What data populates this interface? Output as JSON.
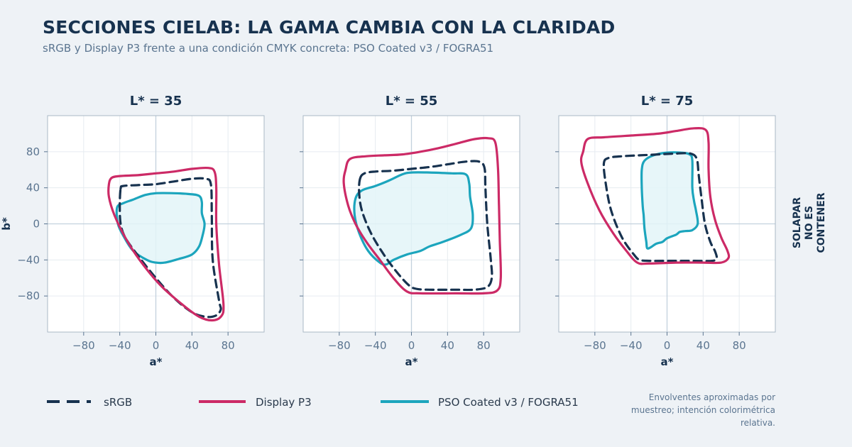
{
  "header": {
    "title": "SECCIONES CIELAB: LA GAMA CAMBIA CON LA CLARIDAD",
    "subtitle": "sRGB y Display P3 frente a una condición CMYK concreta: PSO Coated v3 / FOGRA51"
  },
  "side_label": [
    "SOLAPAR",
    "NO ES",
    "CONTENER"
  ],
  "note": "Envolventes aproximadas por muestreo; intención colorimétrica relativa.",
  "colors": {
    "srgb": "#17324f",
    "p3": "#cc2a66",
    "fogra": "#1ca5bd",
    "fogra_fill": "#e3f5f8",
    "title": "#17324f",
    "muted": "#5b7590"
  },
  "chart_data": [
    {
      "type": "line",
      "title": "L* = 35",
      "xlabel": "a*",
      "ylabel": "b*",
      "xlim": [
        -120,
        120
      ],
      "ylim": [
        -120,
        120
      ],
      "xticks": [
        -80,
        -40,
        0,
        40,
        80
      ],
      "yticks": [
        -80,
        -40,
        0,
        40,
        80
      ],
      "grid": true,
      "series": [
        {
          "name": "sRGB",
          "style": "dashed",
          "points": [
            [
              -39,
              39
            ],
            [
              -36,
              42
            ],
            [
              -20,
              43
            ],
            [
              0,
              44
            ],
            [
              20,
              47
            ],
            [
              40,
              50
            ],
            [
              55,
              50
            ],
            [
              61,
              44
            ],
            [
              62,
              10
            ],
            [
              63,
              -40
            ],
            [
              70,
              -85
            ],
            [
              72,
              -95
            ],
            [
              66,
              -102
            ],
            [
              55,
              -103
            ],
            [
              40,
              -98
            ],
            [
              20,
              -82
            ],
            [
              0,
              -60
            ],
            [
              -20,
              -35
            ],
            [
              -34,
              -15
            ],
            [
              -39,
              0
            ],
            [
              -40,
              20
            ],
            [
              -39,
              39
            ]
          ]
        },
        {
          "name": "Display P3",
          "style": "solid",
          "points": [
            [
              -52,
              44
            ],
            [
              -49,
              51
            ],
            [
              -40,
              53
            ],
            [
              -20,
              54
            ],
            [
              0,
              56
            ],
            [
              20,
              58
            ],
            [
              40,
              61
            ],
            [
              58,
              62
            ],
            [
              65,
              58
            ],
            [
              67,
              40
            ],
            [
              67,
              0
            ],
            [
              70,
              -45
            ],
            [
              75,
              -90
            ],
            [
              72,
              -103
            ],
            [
              62,
              -107
            ],
            [
              48,
              -103
            ],
            [
              30,
              -90
            ],
            [
              5,
              -68
            ],
            [
              -18,
              -40
            ],
            [
              -34,
              -15
            ],
            [
              -46,
              10
            ],
            [
              -52,
              30
            ],
            [
              -52,
              44
            ]
          ]
        },
        {
          "name": "PSO Coated v3 / FOGRA51",
          "style": "solid-filled",
          "points": [
            [
              -43,
              18
            ],
            [
              -36,
              23
            ],
            [
              -25,
              27
            ],
            [
              -12,
              32
            ],
            [
              0,
              34
            ],
            [
              20,
              34
            ],
            [
              38,
              33
            ],
            [
              48,
              31
            ],
            [
              51,
              24
            ],
            [
              51,
              12
            ],
            [
              54,
              0
            ],
            [
              52,
              -12
            ],
            [
              48,
              -25
            ],
            [
              40,
              -34
            ],
            [
              25,
              -39
            ],
            [
              10,
              -43
            ],
            [
              0,
              -43
            ],
            [
              -10,
              -40
            ],
            [
              -25,
              -30
            ],
            [
              -35,
              -15
            ],
            [
              -42,
              0
            ],
            [
              -43,
              18
            ]
          ]
        }
      ]
    },
    {
      "type": "line",
      "title": "L* = 55",
      "xlabel": "a*",
      "ylabel": "",
      "xlim": [
        -120,
        120
      ],
      "ylim": [
        -120,
        120
      ],
      "xticks": [
        -80,
        -40,
        0,
        40,
        80
      ],
      "yticks": [
        -80,
        -40,
        0,
        40,
        80
      ],
      "grid": true,
      "series": [
        {
          "name": "sRGB",
          "style": "dashed",
          "points": [
            [
              -57,
              50
            ],
            [
              -52,
              56
            ],
            [
              -40,
              58
            ],
            [
              -20,
              59
            ],
            [
              0,
              61
            ],
            [
              20,
              63
            ],
            [
              40,
              66
            ],
            [
              60,
              69
            ],
            [
              75,
              69
            ],
            [
              81,
              62
            ],
            [
              82,
              40
            ],
            [
              84,
              0
            ],
            [
              88,
              -40
            ],
            [
              89,
              -60
            ],
            [
              84,
              -70
            ],
            [
              70,
              -73
            ],
            [
              50,
              -73
            ],
            [
              20,
              -73
            ],
            [
              5,
              -72
            ],
            [
              -3,
              -68
            ],
            [
              -15,
              -55
            ],
            [
              -30,
              -35
            ],
            [
              -45,
              -10
            ],
            [
              -55,
              15
            ],
            [
              -58,
              35
            ],
            [
              -57,
              50
            ]
          ]
        },
        {
          "name": "Display P3",
          "style": "solid",
          "points": [
            [
              -73,
              60
            ],
            [
              -68,
              72
            ],
            [
              -50,
              75
            ],
            [
              -30,
              76
            ],
            [
              -10,
              77
            ],
            [
              10,
              80
            ],
            [
              30,
              84
            ],
            [
              50,
              89
            ],
            [
              70,
              94
            ],
            [
              85,
              95
            ],
            [
              93,
              90
            ],
            [
              96,
              60
            ],
            [
              97,
              20
            ],
            [
              98,
              -20
            ],
            [
              99,
              -60
            ],
            [
              95,
              -74
            ],
            [
              80,
              -77
            ],
            [
              50,
              -77
            ],
            [
              10,
              -77
            ],
            [
              -5,
              -75
            ],
            [
              -20,
              -60
            ],
            [
              -35,
              -40
            ],
            [
              -50,
              -20
            ],
            [
              -62,
              0
            ],
            [
              -70,
              20
            ],
            [
              -75,
              45
            ],
            [
              -73,
              60
            ]
          ]
        },
        {
          "name": "PSO Coated v3 / FOGRA51",
          "style": "solid-filled",
          "points": [
            [
              -62,
              28
            ],
            [
              -55,
              37
            ],
            [
              -40,
              42
            ],
            [
              -25,
              48
            ],
            [
              -10,
              55
            ],
            [
              0,
              57
            ],
            [
              20,
              57
            ],
            [
              45,
              56
            ],
            [
              60,
              55
            ],
            [
              64,
              45
            ],
            [
              65,
              30
            ],
            [
              68,
              10
            ],
            [
              66,
              -5
            ],
            [
              55,
              -12
            ],
            [
              35,
              -20
            ],
            [
              20,
              -25
            ],
            [
              10,
              -30
            ],
            [
              -5,
              -34
            ],
            [
              -20,
              -40
            ],
            [
              -28,
              -45
            ],
            [
              -35,
              -43
            ],
            [
              -48,
              -30
            ],
            [
              -58,
              -10
            ],
            [
              -63,
              10
            ],
            [
              -62,
              28
            ]
          ]
        }
      ]
    },
    {
      "type": "line",
      "title": "L* = 75",
      "xlabel": "a*",
      "ylabel": "",
      "xlim": [
        -120,
        120
      ],
      "ylim": [
        -120,
        120
      ],
      "xticks": [
        -80,
        -40,
        0,
        40,
        80
      ],
      "yticks": [
        -80,
        -40,
        0,
        40,
        80
      ],
      "grid": true,
      "series": [
        {
          "name": "sRGB",
          "style": "dashed",
          "points": [
            [
              -70,
              67
            ],
            [
              -65,
              73
            ],
            [
              -50,
              75
            ],
            [
              -30,
              76
            ],
            [
              -10,
              77
            ],
            [
              10,
              78
            ],
            [
              26,
              78
            ],
            [
              33,
              72
            ],
            [
              35,
              55
            ],
            [
              38,
              30
            ],
            [
              42,
              0
            ],
            [
              48,
              -20
            ],
            [
              53,
              -30
            ],
            [
              55,
              -38
            ],
            [
              50,
              -41
            ],
            [
              30,
              -41
            ],
            [
              0,
              -41
            ],
            [
              -20,
              -41
            ],
            [
              -30,
              -40
            ],
            [
              -36,
              -35
            ],
            [
              -50,
              -15
            ],
            [
              -62,
              15
            ],
            [
              -68,
              45
            ],
            [
              -70,
              67
            ]
          ]
        },
        {
          "name": "Display P3",
          "style": "solid",
          "points": [
            [
              -93,
              80
            ],
            [
              -88,
              94
            ],
            [
              -70,
              96
            ],
            [
              -40,
              98
            ],
            [
              -10,
              100
            ],
            [
              10,
              103
            ],
            [
              30,
              106
            ],
            [
              43,
              104
            ],
            [
              46,
              90
            ],
            [
              46,
              60
            ],
            [
              48,
              30
            ],
            [
              53,
              5
            ],
            [
              60,
              -15
            ],
            [
              67,
              -30
            ],
            [
              68,
              -38
            ],
            [
              60,
              -43
            ],
            [
              40,
              -43
            ],
            [
              10,
              -43
            ],
            [
              -20,
              -44
            ],
            [
              -33,
              -43
            ],
            [
              -45,
              -30
            ],
            [
              -60,
              -10
            ],
            [
              -75,
              15
            ],
            [
              -88,
              45
            ],
            [
              -95,
              68
            ],
            [
              -93,
              80
            ]
          ]
        },
        {
          "name": "PSO Coated v3 / FOGRA51",
          "style": "solid-filled",
          "points": [
            [
              -28,
              60
            ],
            [
              -25,
              70
            ],
            [
              -15,
              76
            ],
            [
              0,
              79
            ],
            [
              15,
              79
            ],
            [
              25,
              77
            ],
            [
              28,
              70
            ],
            [
              28,
              40
            ],
            [
              30,
              25
            ],
            [
              32,
              15
            ],
            [
              34,
              0
            ],
            [
              28,
              -7
            ],
            [
              20,
              -8
            ],
            [
              14,
              -9
            ],
            [
              10,
              -12
            ],
            [
              0,
              -16
            ],
            [
              -5,
              -20
            ],
            [
              -12,
              -22
            ],
            [
              -18,
              -26
            ],
            [
              -22,
              -27
            ],
            [
              -23,
              -20
            ],
            [
              -25,
              -5
            ],
            [
              -26,
              10
            ],
            [
              -27,
              20
            ],
            [
              -28,
              40
            ],
            [
              -28,
              60
            ]
          ]
        }
      ]
    }
  ]
}
